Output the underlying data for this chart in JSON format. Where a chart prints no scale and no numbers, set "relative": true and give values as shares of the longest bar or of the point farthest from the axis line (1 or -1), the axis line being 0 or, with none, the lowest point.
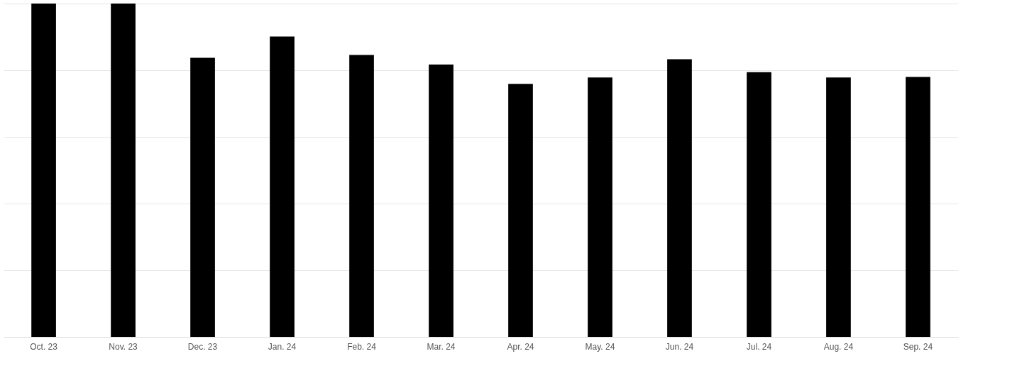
{
  "chart_data": {
    "type": "bar",
    "relative": true,
    "grid": "y",
    "color": "#000000",
    "categories": [
      "Oct. 23",
      "Nov. 23",
      "Dec. 23",
      "Jan. 24",
      "Feb. 24",
      "Mar. 24",
      "Apr. 24",
      "May. 24",
      "Jun. 24",
      "Jul. 24",
      "Aug. 24",
      "Sep. 24"
    ],
    "values": [
      1,
      1,
      0.837,
      0.901,
      0.846,
      0.817,
      0.759,
      0.778,
      0.833,
      0.794,
      0.778,
      0.78
    ]
  }
}
